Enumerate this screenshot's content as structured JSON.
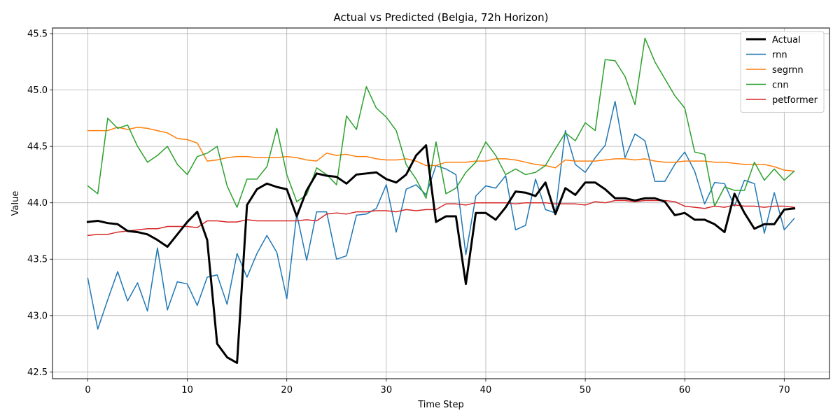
{
  "chart_data": {
    "type": "line",
    "title": "Actual vs Predicted (Belgia, 72h Horizon)",
    "xlabel": "Time Step",
    "ylabel": "Value",
    "xlim": [
      -3.55,
      74.55
    ],
    "ylim": [
      42.44,
      45.55
    ],
    "xticks": [
      0,
      10,
      20,
      30,
      40,
      50,
      60,
      70
    ],
    "yticks": [
      42.5,
      43.0,
      43.5,
      44.0,
      44.5,
      45.0,
      45.5
    ],
    "grid": true,
    "legend_position": "top-right",
    "x": [
      0,
      1,
      2,
      3,
      4,
      5,
      6,
      7,
      8,
      9,
      10,
      11,
      12,
      13,
      14,
      15,
      16,
      17,
      18,
      19,
      20,
      21,
      22,
      23,
      24,
      25,
      26,
      27,
      28,
      29,
      30,
      31,
      32,
      33,
      34,
      35,
      36,
      37,
      38,
      39,
      40,
      41,
      42,
      43,
      44,
      45,
      46,
      47,
      48,
      49,
      50,
      51,
      52,
      53,
      54,
      55,
      56,
      57,
      58,
      59,
      60,
      61,
      62,
      63,
      64,
      65,
      66,
      67,
      68,
      69,
      70,
      71
    ],
    "series": [
      {
        "name": "Actual",
        "color": "#000000",
        "values": [
          43.83,
          43.84,
          43.82,
          43.81,
          43.75,
          43.74,
          43.72,
          43.67,
          43.61,
          43.72,
          43.83,
          43.92,
          43.67,
          42.75,
          42.63,
          42.58,
          43.98,
          44.12,
          44.17,
          44.14,
          44.12,
          43.88,
          44.11,
          44.26,
          44.24,
          44.23,
          44.17,
          44.25,
          44.26,
          44.27,
          44.21,
          44.18,
          44.25,
          44.42,
          44.51,
          43.83,
          43.88,
          43.88,
          43.28,
          43.91,
          43.91,
          43.85,
          43.96,
          44.1,
          44.09,
          44.06,
          44.18,
          43.9,
          44.13,
          44.07,
          44.18,
          44.18,
          44.12,
          44.04,
          44.04,
          44.02,
          44.04,
          44.04,
          44.01,
          43.89,
          43.91,
          43.85,
          43.85,
          43.81,
          43.74,
          44.08,
          43.91,
          43.77,
          43.81,
          43.81,
          43.94,
          43.95
        ]
      },
      {
        "name": "rnn",
        "color": "#1f77b4",
        "values": [
          43.33,
          42.88,
          43.14,
          43.39,
          43.13,
          43.29,
          43.04,
          43.6,
          43.05,
          43.3,
          43.28,
          43.09,
          43.34,
          43.36,
          43.1,
          43.55,
          43.34,
          43.55,
          43.71,
          43.56,
          43.15,
          43.9,
          43.49,
          43.92,
          43.92,
          43.5,
          43.53,
          43.89,
          43.9,
          43.95,
          44.16,
          43.74,
          44.12,
          44.16,
          44.07,
          44.33,
          44.3,
          44.25,
          43.54,
          44.06,
          44.15,
          44.13,
          44.24,
          43.76,
          43.8,
          44.21,
          43.94,
          43.91,
          44.64,
          44.34,
          44.27,
          44.4,
          44.51,
          44.9,
          44.4,
          44.61,
          44.55,
          44.19,
          44.19,
          44.34,
          44.45,
          44.28,
          43.99,
          44.18,
          44.17,
          43.97,
          44.2,
          44.17,
          43.73,
          44.09,
          43.76,
          43.86
        ]
      },
      {
        "name": "segrnn",
        "color": "#ff7f0e",
        "values": [
          44.64,
          44.64,
          44.64,
          44.67,
          44.65,
          44.67,
          44.66,
          44.64,
          44.62,
          44.57,
          44.56,
          44.53,
          44.37,
          44.38,
          44.4,
          44.41,
          44.41,
          44.4,
          44.4,
          44.4,
          44.41,
          44.4,
          44.38,
          44.37,
          44.44,
          44.42,
          44.43,
          44.41,
          44.41,
          44.39,
          44.38,
          44.38,
          44.39,
          44.37,
          44.33,
          44.33,
          44.36,
          44.36,
          44.36,
          44.37,
          44.37,
          44.39,
          44.39,
          44.38,
          44.36,
          44.34,
          44.33,
          44.31,
          44.38,
          44.37,
          44.37,
          44.37,
          44.38,
          44.39,
          44.39,
          44.38,
          44.39,
          44.37,
          44.36,
          44.36,
          44.37,
          44.37,
          44.37,
          44.36,
          44.36,
          44.35,
          44.34,
          44.34,
          44.34,
          44.32,
          44.29,
          44.28
        ]
      },
      {
        "name": "cnn",
        "color": "#2ca02c",
        "values": [
          44.15,
          44.08,
          44.75,
          44.66,
          44.69,
          44.5,
          44.36,
          44.42,
          44.5,
          44.34,
          44.25,
          44.41,
          44.44,
          44.5,
          44.15,
          43.96,
          44.21,
          44.21,
          44.32,
          44.66,
          44.25,
          44.01,
          44.07,
          44.31,
          44.25,
          44.16,
          44.77,
          44.65,
          45.03,
          44.84,
          44.76,
          44.64,
          44.34,
          44.21,
          44.04,
          44.54,
          44.08,
          44.13,
          44.27,
          44.36,
          44.54,
          44.42,
          44.25,
          44.3,
          44.25,
          44.27,
          44.33,
          44.48,
          44.62,
          44.55,
          44.71,
          44.64,
          45.27,
          45.26,
          45.12,
          44.87,
          45.46,
          45.25,
          45.1,
          44.95,
          44.84,
          44.45,
          44.43,
          43.97,
          44.14,
          44.11,
          44.11,
          44.36,
          44.2,
          44.3,
          44.2,
          44.28
        ]
      },
      {
        "name": "petformer",
        "color": "#d62728",
        "values": [
          43.71,
          43.72,
          43.72,
          43.74,
          43.75,
          43.76,
          43.77,
          43.77,
          43.79,
          43.79,
          43.79,
          43.78,
          43.84,
          43.84,
          43.83,
          43.83,
          43.85,
          43.84,
          43.84,
          43.84,
          43.84,
          43.84,
          43.85,
          43.84,
          43.9,
          43.91,
          43.9,
          43.92,
          43.92,
          43.93,
          43.93,
          43.92,
          43.94,
          43.93,
          43.94,
          43.94,
          43.99,
          43.99,
          43.98,
          44.0,
          44.0,
          44.0,
          44.0,
          43.99,
          44.0,
          44.0,
          44.0,
          43.99,
          43.99,
          43.99,
          43.98,
          44.01,
          44.0,
          44.02,
          44.02,
          44.01,
          44.02,
          44.02,
          44.02,
          44.01,
          43.97,
          43.96,
          43.95,
          43.97,
          43.96,
          43.98,
          43.97,
          43.97,
          43.96,
          43.97,
          43.97,
          43.96
        ]
      }
    ]
  }
}
